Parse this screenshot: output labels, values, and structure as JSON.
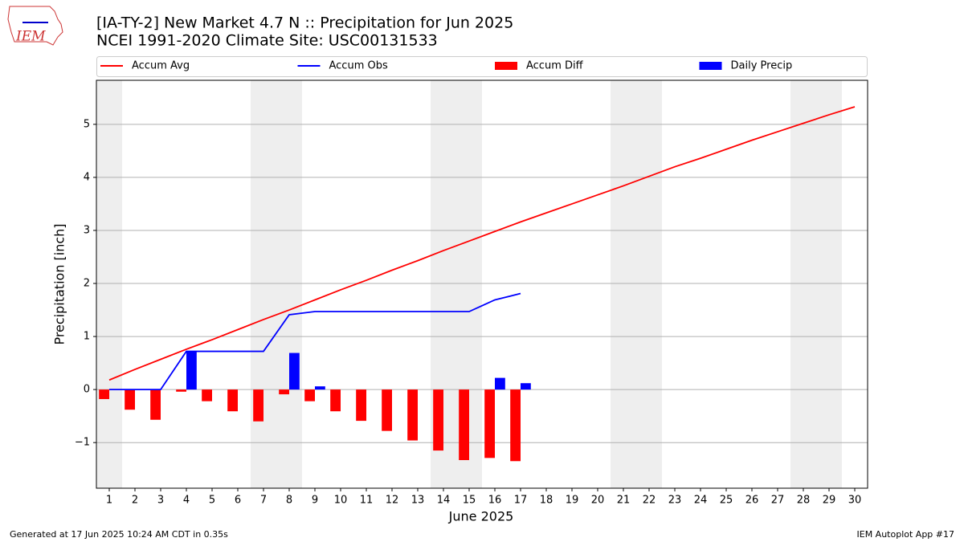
{
  "logo_text": "IEM",
  "footer_left": "Generated at 17 Jun 2025 10:24 AM CDT in 0.35s",
  "footer_right": "IEM Autoplot App #17",
  "chart_data": {
    "type": "combo",
    "title": "[IA-TY-2] New Market 4.7 N :: Precipitation for Jun 2025",
    "subtitle": "NCEI 1991-2020 Climate Site: USC00131533",
    "x_label": "June 2025",
    "y_label": "Precipitation [inch]",
    "x": [
      1,
      2,
      3,
      4,
      5,
      6,
      7,
      8,
      9,
      10,
      11,
      12,
      13,
      14,
      15,
      16,
      17,
      18,
      19,
      20,
      21,
      22,
      23,
      24,
      25,
      26,
      27,
      28,
      29,
      30
    ],
    "xlim": [
      0.5,
      30.5
    ],
    "xticks": [
      1,
      2,
      3,
      4,
      5,
      6,
      7,
      8,
      9,
      10,
      11,
      12,
      13,
      14,
      15,
      16,
      17,
      18,
      19,
      20,
      21,
      22,
      23,
      24,
      25,
      26,
      27,
      28,
      29,
      30
    ],
    "ylim": [
      -1.86,
      5.83
    ],
    "yticks": [
      {
        "value": -1,
        "label": "−1"
      },
      0,
      1,
      2,
      3,
      4,
      5
    ],
    "grid": true,
    "weekend_days": [
      1,
      7,
      8,
      14,
      15,
      21,
      22,
      28,
      29
    ],
    "legend": "top",
    "series": [
      {
        "name": "Accum Avg",
        "type": "line",
        "color": "#ff0000",
        "values": [
          0.18,
          0.38,
          0.57,
          0.76,
          0.94,
          1.13,
          1.32,
          1.5,
          1.69,
          1.88,
          2.06,
          2.25,
          2.43,
          2.62,
          2.8,
          2.98,
          3.16,
          3.33,
          3.5,
          3.67,
          3.84,
          4.02,
          4.2,
          4.36,
          4.53,
          4.7,
          4.86,
          5.02,
          5.18,
          5.33
        ]
      },
      {
        "name": "Accum Obs",
        "type": "line",
        "color": "#0000ff",
        "values": [
          0,
          0,
          0,
          0.72,
          0.72,
          0.72,
          0.72,
          1.41,
          1.47,
          1.47,
          1.47,
          1.47,
          1.47,
          1.47,
          1.47,
          1.69,
          1.81,
          null,
          null,
          null,
          null,
          null,
          null,
          null,
          null,
          null,
          null,
          null,
          null,
          null
        ]
      },
      {
        "name": "Accum Diff",
        "type": "bar",
        "color": "#ff0000",
        "values": [
          -0.18,
          -0.38,
          -0.57,
          -0.04,
          -0.22,
          -0.41,
          -0.6,
          -0.09,
          -0.22,
          -0.41,
          -0.59,
          -0.78,
          -0.96,
          -1.15,
          -1.33,
          -1.29,
          -1.35,
          null,
          null,
          null,
          null,
          null,
          null,
          null,
          null,
          null,
          null,
          null,
          null,
          null
        ]
      },
      {
        "name": "Daily Precip",
        "type": "bar",
        "color": "#0000ff",
        "values": [
          0,
          0,
          0,
          0.72,
          0,
          0,
          0,
          0.69,
          0.06,
          0,
          0,
          0,
          0,
          0,
          0,
          0.22,
          0.12,
          null,
          null,
          null,
          null,
          null,
          null,
          null,
          null,
          null,
          null,
          null,
          null,
          null
        ]
      }
    ]
  }
}
